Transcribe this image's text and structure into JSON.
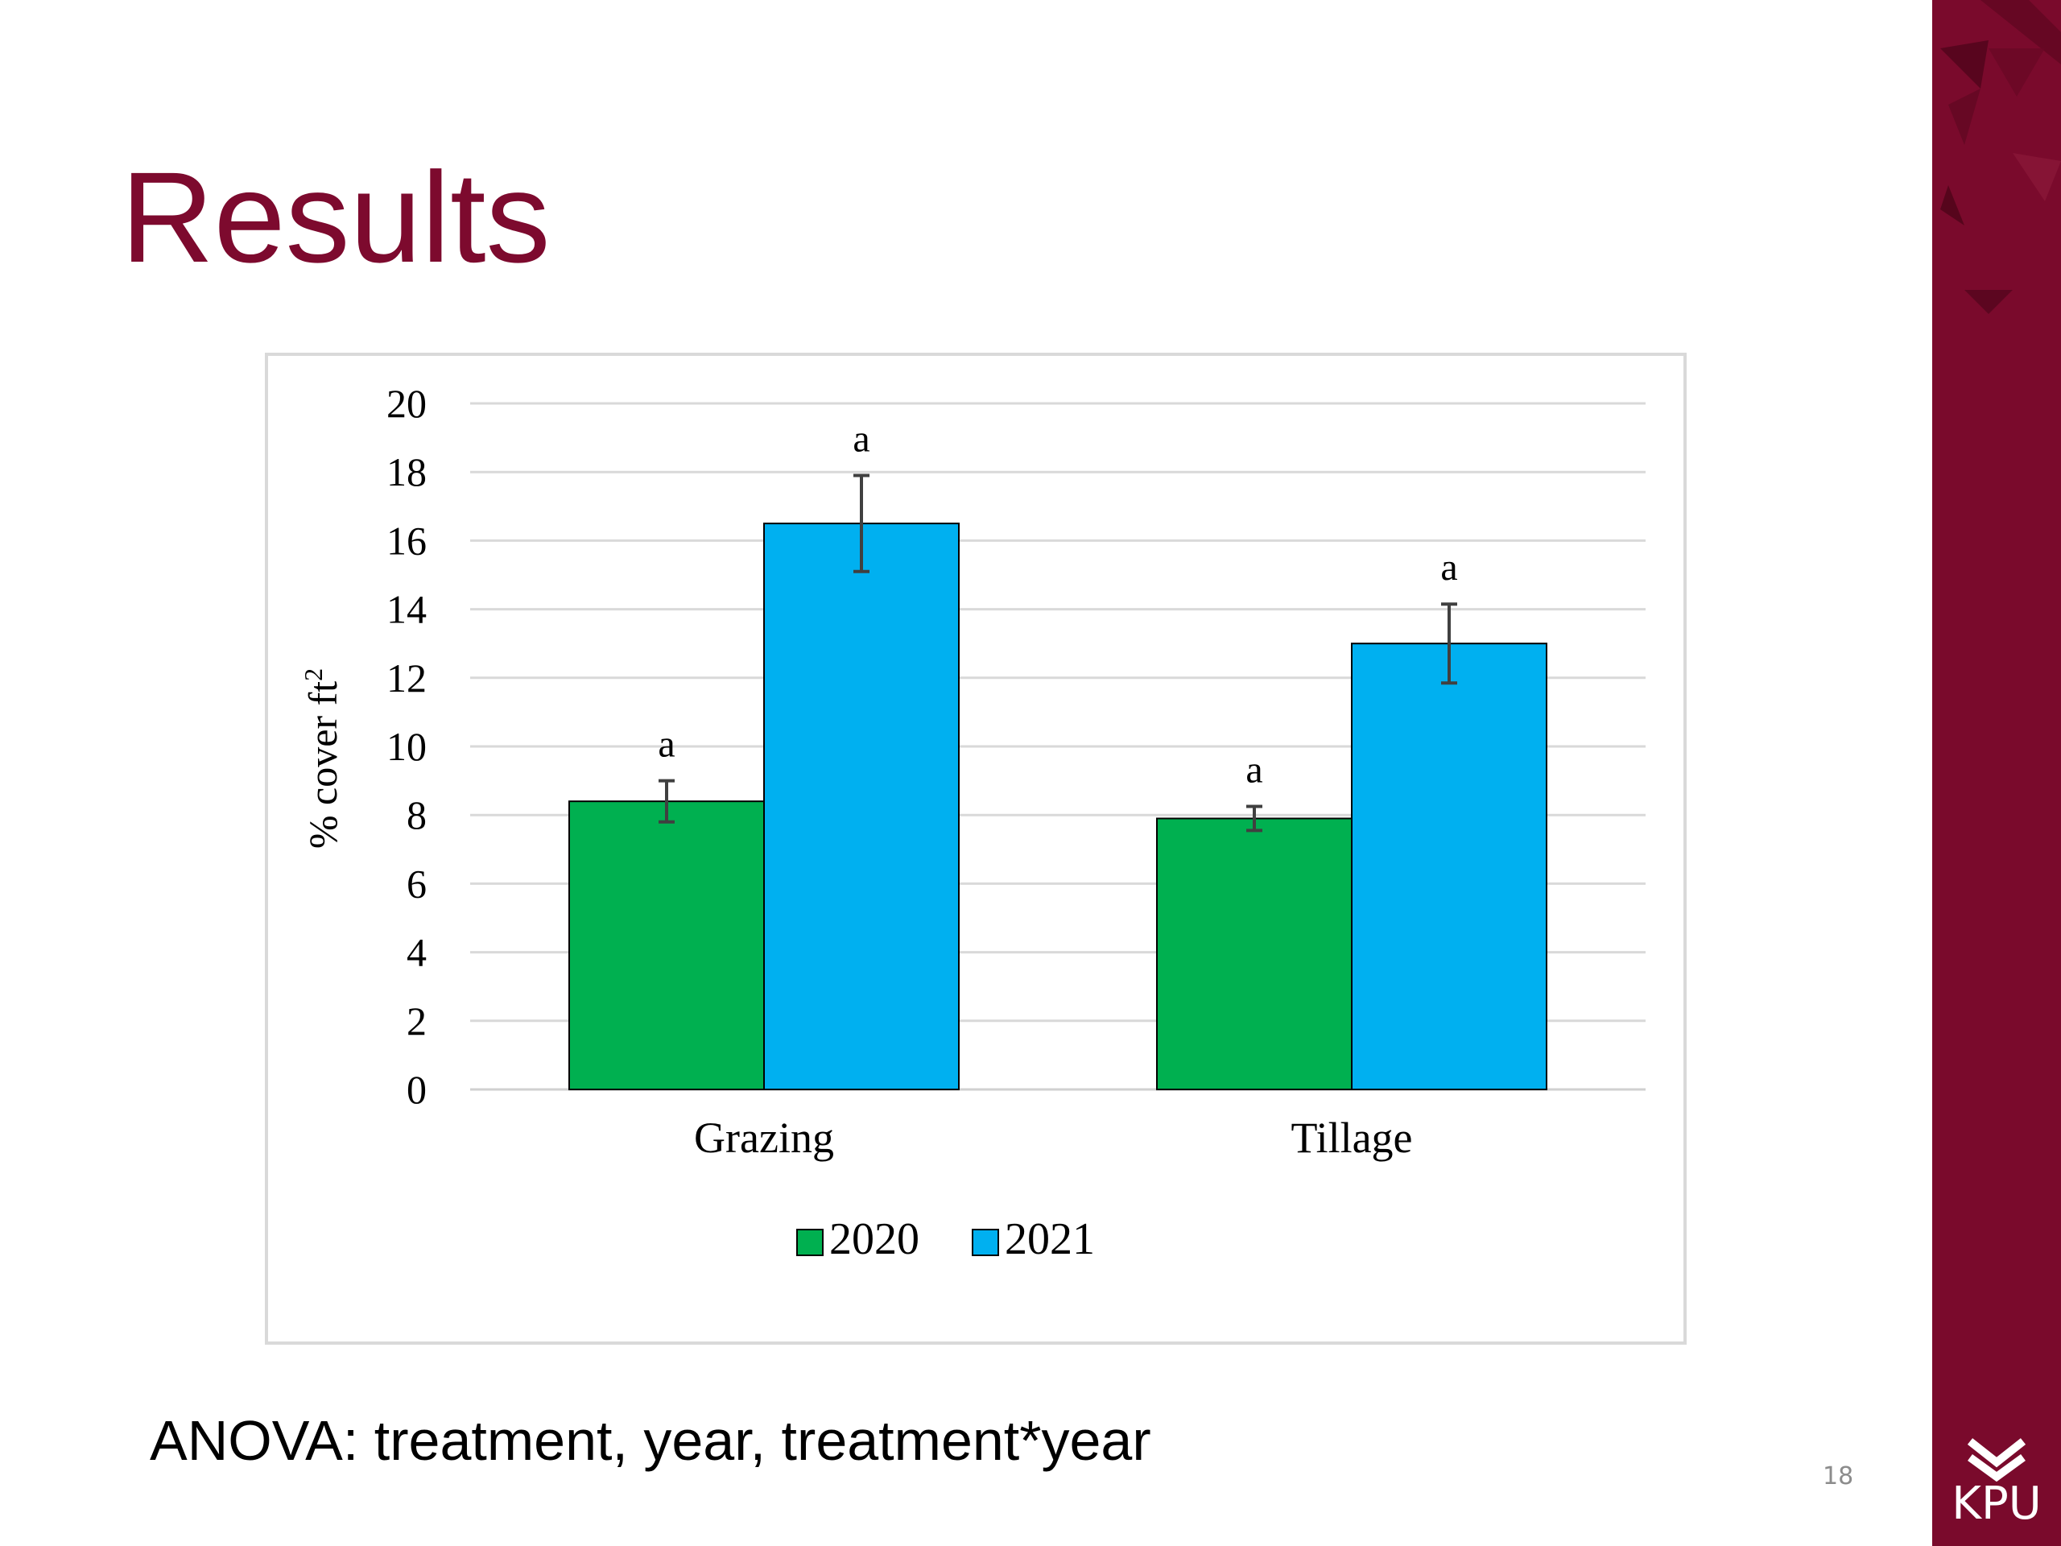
{
  "slide": {
    "title": "Results",
    "note": "ANOVA: treatment, year, treatment*year",
    "page_number": "18",
    "logo_text": "KPU",
    "brand_color": "#7a0a2c",
    "title_color": "#7d0a2e"
  },
  "chart_data": {
    "type": "bar",
    "categories": [
      "Grazing",
      "Tillage"
    ],
    "series": [
      {
        "name": "2020",
        "color": "#00b050",
        "values": [
          8.4,
          7.9
        ],
        "errors": [
          0.6,
          0.35
        ],
        "significance": [
          "a",
          "a"
        ]
      },
      {
        "name": "2021",
        "color": "#00b0f0",
        "values": [
          16.5,
          13.0
        ],
        "errors": [
          1.4,
          1.15
        ],
        "significance": [
          "a",
          "a"
        ]
      }
    ],
    "ylabel": "% cover ft",
    "ylabel_superscript": "2",
    "ylim": [
      0,
      20
    ],
    "yticks": [
      0,
      2,
      4,
      6,
      8,
      10,
      12,
      14,
      16,
      18,
      20
    ],
    "grid": true,
    "legend_position": "bottom"
  }
}
